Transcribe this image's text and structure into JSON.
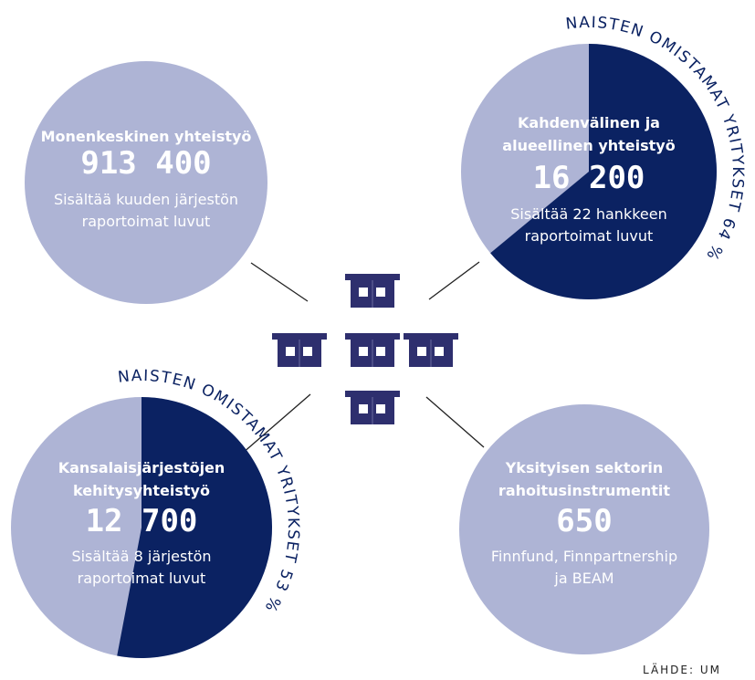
{
  "circles": [
    {
      "heading": [
        "Monenkeskinen yhteistyö"
      ],
      "value": "913 400",
      "note": [
        "Sisältää kuuden järjestön",
        "raportoimat luvut"
      ]
    },
    {
      "heading": [
        "Kahdenvälinen ja",
        "alueellinen yhteistyö"
      ],
      "value": "16 200",
      "note": [
        "Sisältää 22 hankkeen",
        "raportoimat luvut"
      ],
      "share": {
        "label": "NAISTEN OMISTAMAT YRITYKSET 64 %",
        "value": 64
      }
    },
    {
      "heading": [
        "Kansalaisjärjestöjen",
        "kehitysyhteistyö"
      ],
      "value": "12 700",
      "note": [
        "Sisältää 8 järjestön",
        "raportoimat luvut"
      ],
      "share": {
        "label": "NAISTEN OMISTAMAT YRITYKSET 53 %",
        "value": 53
      }
    },
    {
      "heading": [
        "Yksityisen sektorin",
        "rahoitusinstrumentit"
      ],
      "value": "650",
      "note": [
        "Finnfund, Finnpartnership",
        "ja BEAM"
      ]
    }
  ],
  "source": "LÄHDE: UM"
}
